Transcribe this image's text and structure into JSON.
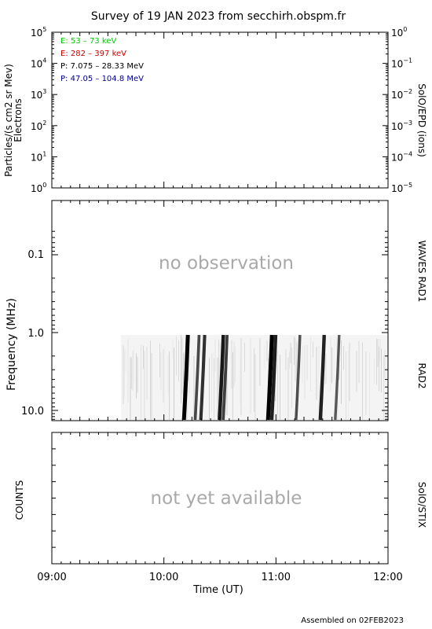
{
  "title": "Survey of 19 JAN 2023 from secchirh.obspm.fr",
  "footer": "Assembled on 02FEB2023",
  "colors": {
    "green": "#00cc00",
    "red": "#cc0000",
    "black": "#000000",
    "blue": "#000099",
    "placeholder": "#a9a9a9"
  },
  "panels": {
    "particles": {
      "ylabel_main": "Particles/(s cm2 sr Mev)",
      "ylabel_sub": "Electrons",
      "right_label": "SolO/EPD (ions)",
      "left_ticks": [
        {
          "base": "10",
          "exp": "5"
        },
        {
          "base": "10",
          "exp": "4"
        },
        {
          "base": "10",
          "exp": "3"
        },
        {
          "base": "10",
          "exp": "2"
        },
        {
          "base": "10",
          "exp": "1"
        },
        {
          "base": "10",
          "exp": "0"
        }
      ],
      "right_ticks": [
        {
          "base": "10",
          "exp": "0"
        },
        {
          "base": "10",
          "exp": "−1"
        },
        {
          "base": "10",
          "exp": "−2"
        },
        {
          "base": "10",
          "exp": "−3"
        },
        {
          "base": "10",
          "exp": "−4"
        },
        {
          "base": "10",
          "exp": "−5"
        }
      ],
      "legend": [
        {
          "text": "E: 53 – 73 keV",
          "color": "#00cc00"
        },
        {
          "text": "E: 282 – 397 keV",
          "color": "#cc0000"
        },
        {
          "text": "P: 7.075 – 28.33 MeV",
          "color": "#000000"
        },
        {
          "text": "P: 47.05 – 104.8 MeV",
          "color": "#000099"
        }
      ]
    },
    "radio": {
      "ylabel": "Frequency (MHz)",
      "right_label_top": "WAVES RAD1",
      "right_label_bottom": "RAD2",
      "placeholder": "no observation",
      "ticks": [
        "0.1",
        "1.0",
        "10.0"
      ]
    },
    "stix": {
      "ylabel": "COUNTS",
      "right_label": "SolO/STIX",
      "placeholder": "not yet available"
    }
  },
  "chart_data": {
    "type": "heatmap",
    "xlabel": "Time (UT)",
    "x_ticks": [
      "09:00",
      "10:00",
      "11:00",
      "12:00"
    ],
    "x_range": [
      "09:00",
      "12:00"
    ],
    "radio_frequency_range_mhz": [
      1.0,
      14.0
    ],
    "radio_data_start": "09:37",
    "bursts": [
      {
        "time": "10:12",
        "intensity": 1.0
      },
      {
        "time": "10:18",
        "intensity": 0.55
      },
      {
        "time": "10:21",
        "intensity": 0.7
      },
      {
        "time": "10:31",
        "intensity": 0.85
      },
      {
        "time": "10:33",
        "intensity": 0.6
      },
      {
        "time": "10:57",
        "intensity": 1.0
      },
      {
        "time": "10:59",
        "intensity": 0.8
      },
      {
        "time": "11:12",
        "intensity": 0.5
      },
      {
        "time": "11:25",
        "intensity": 0.8
      },
      {
        "time": "11:33",
        "intensity": 0.45
      }
    ]
  }
}
